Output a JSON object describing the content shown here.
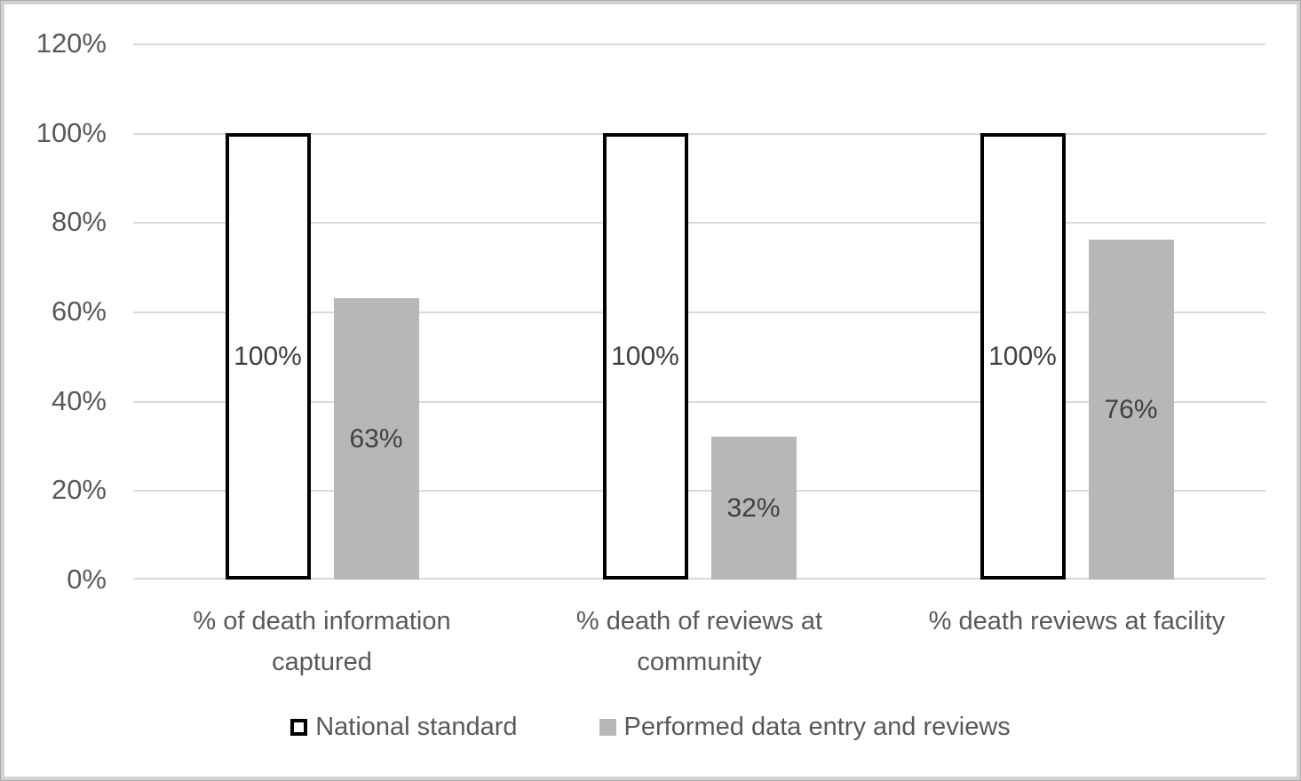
{
  "figure": {
    "background": "#ffffff",
    "frame_border_color": "#d2d2d2"
  },
  "chart_data": {
    "type": "bar",
    "title": "",
    "xlabel": "",
    "ylabel": "",
    "categories": [
      "% of death information captured",
      "% death of reviews at community",
      "% death reviews at facility"
    ],
    "series": [
      {
        "name": "National standard",
        "values": [
          100,
          100,
          100
        ],
        "labels": [
          "100%",
          "100%",
          "100%"
        ],
        "fill": "#ffffff",
        "border": "#000000"
      },
      {
        "name": "Performed data entry and reviews",
        "values": [
          63,
          32,
          76
        ],
        "labels": [
          "63%",
          "32%",
          "76%"
        ],
        "fill": "#b7b7b7"
      }
    ],
    "ylim": [
      0,
      120
    ],
    "ytick_step": 20,
    "yticks": [
      "120%",
      "100%",
      "80%",
      "60%",
      "40%",
      "20%",
      "0%"
    ],
    "grid": true,
    "gridline_color": "#d9d9d9",
    "axis_text_color": "#595959",
    "data_label_color": "#404040",
    "legend_position": "bottom"
  }
}
